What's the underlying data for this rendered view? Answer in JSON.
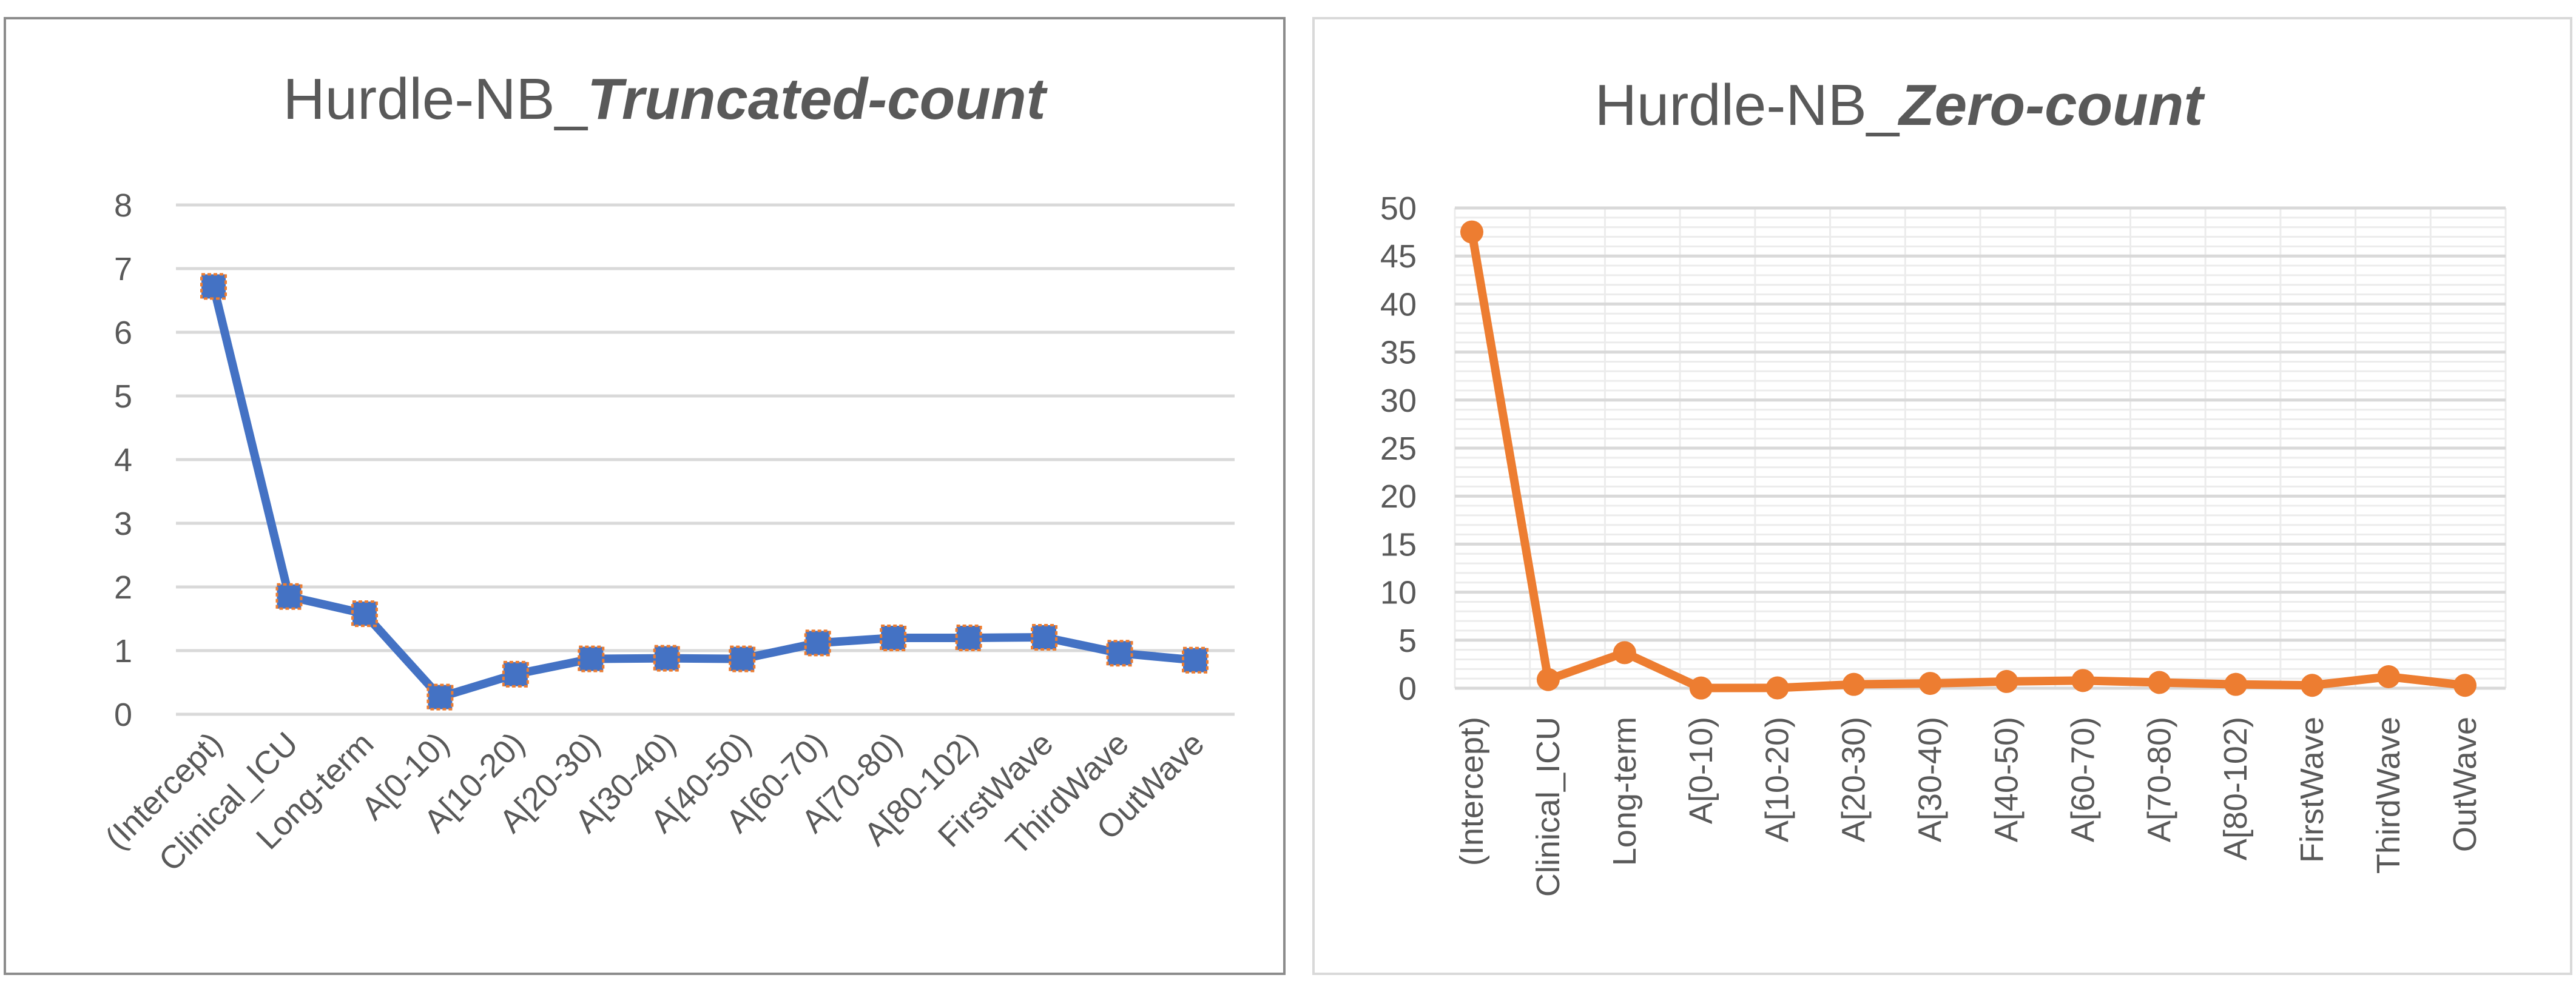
{
  "chart_data": [
    {
      "type": "line",
      "title_prefix": "Hurdle-NB_",
      "title_emphasis": "Truncated-count",
      "categories": [
        "(Intercept)",
        "Clinical_ICU",
        "Long-term",
        "A[0-10)",
        "A[10-20)",
        "A[20-30)",
        "A[30-40)",
        "A[40-50)",
        "A[60-70)",
        "A[70-80)",
        "A[80-102)",
        "FirstWave",
        "ThirdWave",
        "OutWave"
      ],
      "series": [
        {
          "values": [
            6.72,
            1.85,
            1.58,
            0.27,
            0.63,
            0.87,
            0.88,
            0.87,
            1.12,
            1.2,
            1.2,
            1.21,
            0.96,
            0.85
          ]
        }
      ],
      "ylim": [
        0,
        8
      ],
      "yticks": [
        "0",
        "1",
        "2",
        "3",
        "4",
        "5",
        "6",
        "7",
        "8"
      ],
      "grid": true,
      "line_color": "#4472C4",
      "marker_color": "#4472C4",
      "marker_edge_color": "#ED7D31",
      "marker": "square"
    },
    {
      "type": "line",
      "title_prefix": "Hurdle-NB_",
      "title_emphasis": "Zero-count",
      "categories": [
        "(Intercept)",
        "Clinical_ICU",
        "Long-term",
        "A[0-10)",
        "A[10-20)",
        "A[20-30)",
        "A[30-40)",
        "A[40-50)",
        "A[60-70)",
        "A[70-80)",
        "A[80-102)",
        "FirstWave",
        "ThirdWave",
        "OutWave"
      ],
      "series": [
        {
          "values": [
            47.5,
            0.9,
            3.7,
            0.02,
            0.03,
            0.4,
            0.5,
            0.7,
            0.8,
            0.6,
            0.4,
            0.3,
            1.2,
            0.3
          ]
        }
      ],
      "ylim": [
        0,
        50
      ],
      "yticks": [
        "0",
        "5",
        "10",
        "15",
        "20",
        "25",
        "30",
        "35",
        "40",
        "45",
        "50"
      ],
      "grid": true,
      "line_color": "#ED7D31",
      "marker_color": "#ED7D31",
      "marker": "circle"
    }
  ]
}
